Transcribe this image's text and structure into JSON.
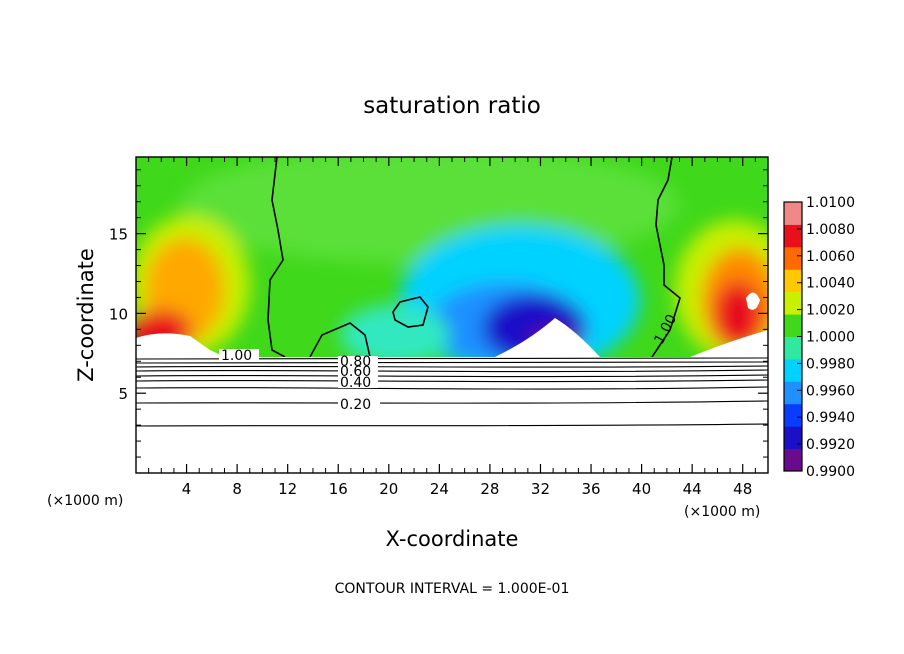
{
  "chart_data": {
    "type": "heatmap",
    "title": "saturation ratio",
    "xlabel": "X-coordinate",
    "ylabel": "Z-coordinate",
    "x_unit": "(×1000 m)",
    "x_unit_right": "(×1000 m)",
    "xlim": [
      0,
      50
    ],
    "ylim": [
      0,
      19.8
    ],
    "x_ticks": [
      4,
      8,
      12,
      16,
      20,
      24,
      28,
      32,
      36,
      40,
      44,
      48
    ],
    "x_tick_labels": [
      "4",
      "8",
      "12",
      "16",
      "20",
      "24",
      "28",
      "32",
      "36",
      "40",
      "44",
      "48"
    ],
    "y_ticks": [
      5,
      10,
      15
    ],
    "y_tick_labels": [
      "5",
      "10",
      "15"
    ],
    "colorbar": {
      "min": 0.99,
      "max": 1.01,
      "tick_values": [
        0.99,
        0.992,
        0.994,
        0.996,
        0.998,
        1.0,
        1.002,
        1.004,
        1.006,
        1.008,
        1.01
      ],
      "tick_labels": [
        "0.9900",
        "0.9920",
        "0.9940",
        "0.9960",
        "0.9980",
        "1.0000",
        "1.0020",
        "1.0040",
        "1.0060",
        "1.0080",
        "1.0100"
      ],
      "colors": [
        "#6a0a8c",
        "#1a10c8",
        "#0a3cff",
        "#1e90ff",
        "#00d2ff",
        "#30e8a0",
        "#3fd81a",
        "#c8f000",
        "#ffc800",
        "#ff6a00",
        "#e8101a",
        "#f08888"
      ]
    },
    "field_base_z": 7.2,
    "contour_labels": [
      "1.00",
      "0.80",
      "0.60",
      "0.40",
      "0.20",
      "1.00"
    ],
    "contour_levels_below": [
      0.2,
      0.4,
      0.6,
      0.8,
      1.0
    ],
    "contour_interval_text": "CONTOUR INTERVAL =  1.000E-01",
    "grid": false
  }
}
